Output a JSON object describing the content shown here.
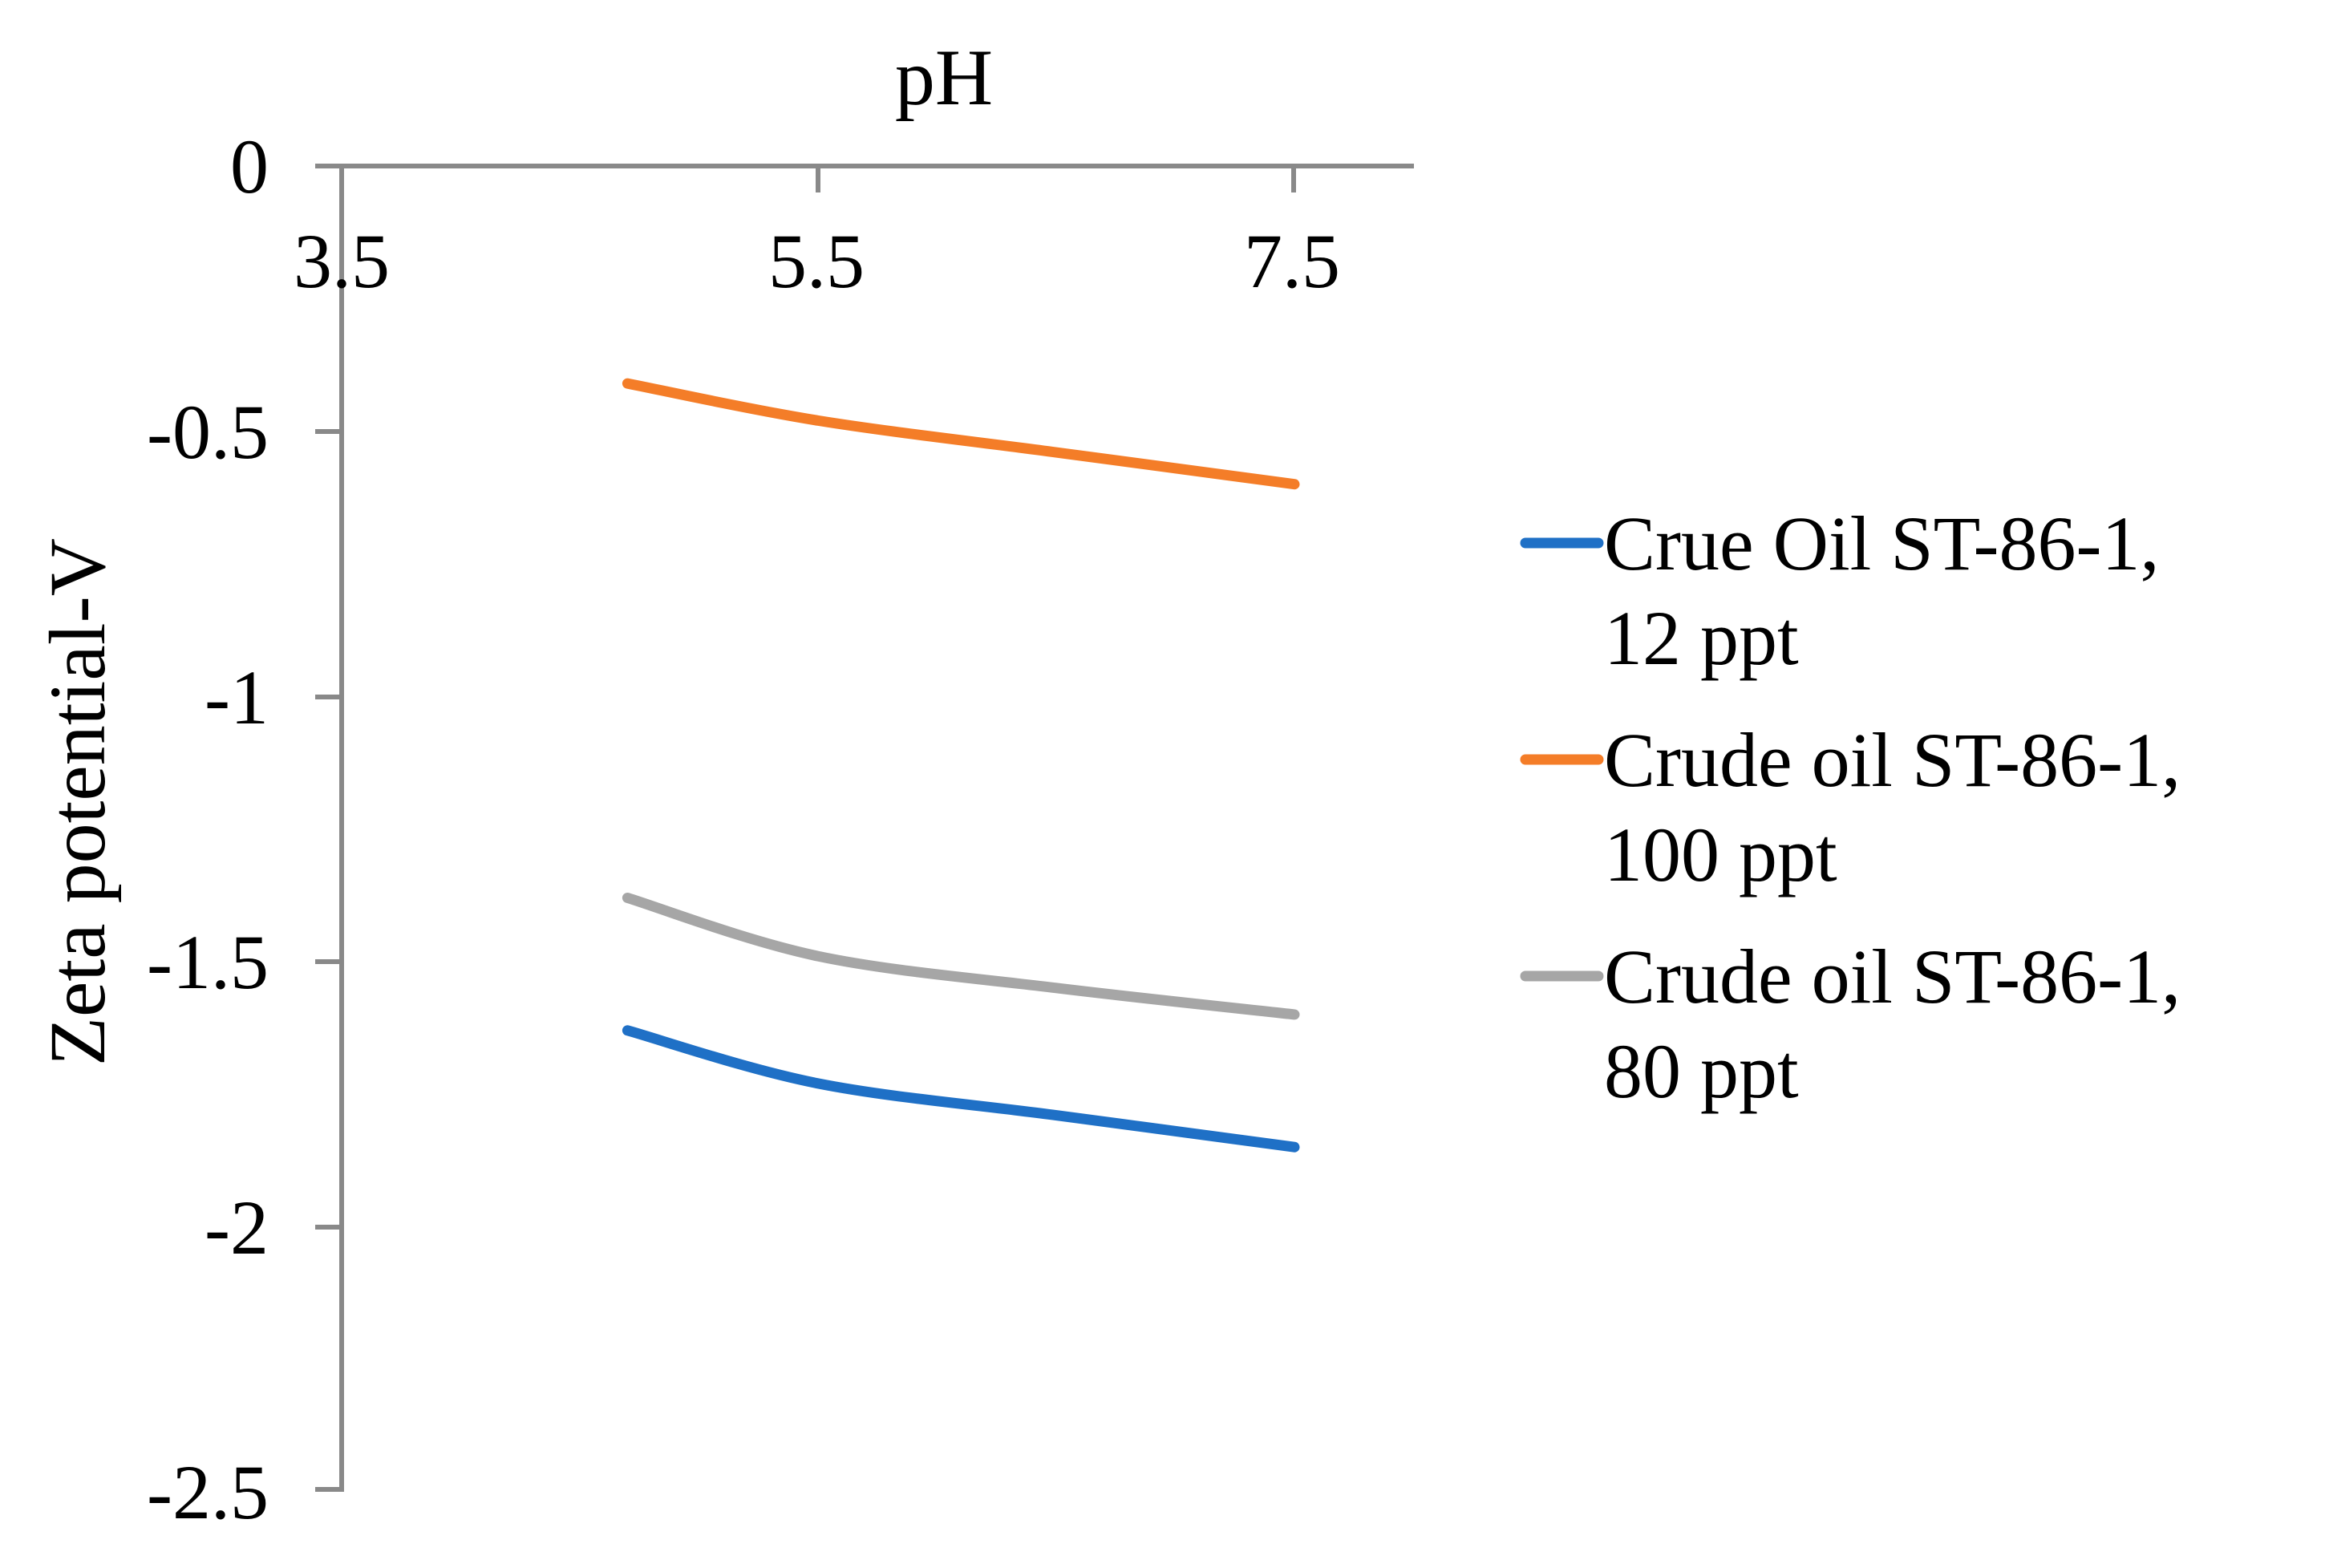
{
  "chart_data": {
    "type": "line",
    "title": "",
    "x_axis": {
      "label": "pH",
      "position": "top",
      "tick_labels": [
        "3.5",
        "5.5",
        "7.5"
      ],
      "tick_values": [
        3.5,
        5.5,
        7.5
      ],
      "range": [
        3.5,
        7.5
      ],
      "grid": false
    },
    "y_axis": {
      "label": "Zeta potential-V",
      "tick_labels": [
        "0",
        "-0.5",
        "-1",
        "-1.5",
        "-2",
        "-2.5"
      ],
      "tick_values": [
        0,
        -0.5,
        -1,
        -1.5,
        -2,
        -2.5
      ],
      "range": [
        -2.5,
        0
      ],
      "grid": false
    },
    "series": [
      {
        "name": "Crue Oil ST-86-1, 12 ppt",
        "color": "#1F70C6",
        "x": [
          4.7,
          5.5,
          6.5,
          7.5
        ],
        "values": [
          -1.63,
          -1.73,
          -1.79,
          -1.85
        ]
      },
      {
        "name": "Crude oil ST-86-1, 100 ppt",
        "color": "#F47D28",
        "x": [
          4.7,
          5.5,
          6.5,
          7.5
        ],
        "values": [
          -0.41,
          -0.48,
          -0.54,
          -0.6
        ]
      },
      {
        "name": "Crude oil ST-86-1, 80 ppt",
        "color": "#A6A6A6",
        "x": [
          4.7,
          5.5,
          6.5,
          7.5
        ],
        "values": [
          -1.38,
          -1.49,
          -1.55,
          -1.6
        ]
      }
    ],
    "legend": {
      "position": "right",
      "entries": [
        {
          "line1": "Crue Oil ST-86-1,",
          "line2": "12 ppt",
          "color": "#1F70C6"
        },
        {
          "line1": "Crude oil ST-86-1,",
          "line2": "100 ppt",
          "color": "#F47D28"
        },
        {
          "line1": "Crude oil ST-86-1,",
          "line2": "80 ppt",
          "color": "#A6A6A6"
        }
      ]
    },
    "axis_color": "#898989"
  }
}
